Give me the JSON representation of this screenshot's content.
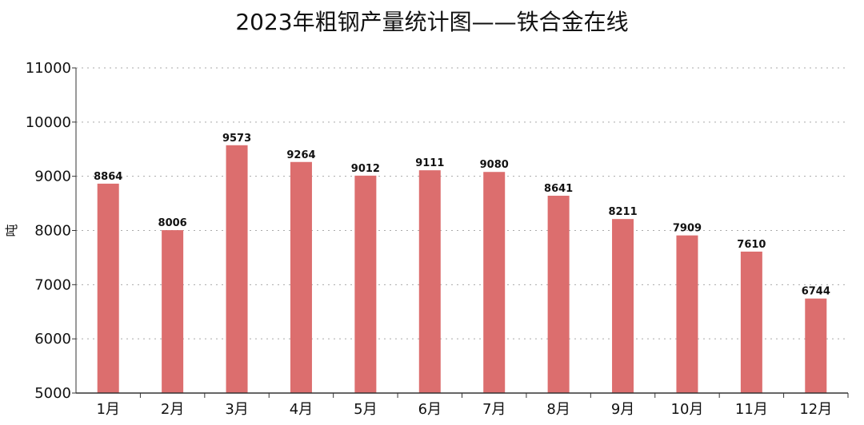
{
  "chart_data": {
    "type": "bar",
    "title": "2023年粗钢产量统计图——铁合金在线",
    "ylabel": "吨",
    "xlabel": "",
    "categories": [
      "1月",
      "2月",
      "3月",
      "4月",
      "5月",
      "6月",
      "7月",
      "8月",
      "9月",
      "10月",
      "11月",
      "12月"
    ],
    "values": [
      8864,
      8006,
      9573,
      9264,
      9012,
      9111,
      9080,
      8641,
      8211,
      7909,
      7610,
      6744
    ],
    "ylim": [
      5000,
      11000
    ],
    "yticks": [
      5000,
      6000,
      7000,
      8000,
      9000,
      10000,
      11000
    ],
    "grid": true,
    "bar_color": "#dc6e6e"
  }
}
